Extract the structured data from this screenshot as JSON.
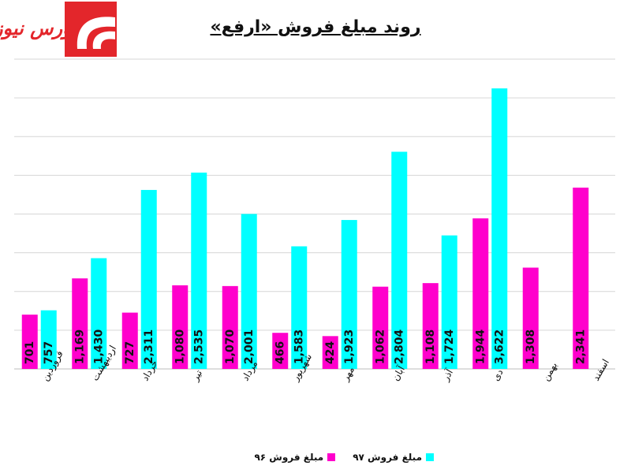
{
  "title": "روند مبلغ فروش «ارفع»",
  "logo_text": "بورس نیوز",
  "colors": {
    "s96": "#ff00cc",
    "s97": "#00ffff",
    "grid": "#d6d6d6",
    "logo": "#e3262b"
  },
  "chart_data": {
    "type": "bar",
    "title": "روند مبلغ فروش «ارفع»",
    "categories": [
      "فروردین",
      "اردیبهشت",
      "خرداد",
      "تیر",
      "مرداد",
      "شهریور",
      "مهر",
      "آبان",
      "آذر",
      "دی",
      "بهمن",
      "اسفند"
    ],
    "series": [
      {
        "name": "مبلغ فروش ۹۶",
        "values": [
          701,
          1169,
          727,
          1080,
          1070,
          466,
          424,
          1062,
          1108,
          1944,
          1308,
          2341
        ],
        "labels": [
          "701",
          "1,169",
          "727",
          "1,080",
          "1,070",
          "466",
          "424",
          "1,062",
          "1,108",
          "1,944",
          "1,308",
          "2,341"
        ]
      },
      {
        "name": "مبلغ فروش ۹۷",
        "values": [
          757,
          1430,
          2311,
          2535,
          2001,
          1583,
          1923,
          2804,
          1724,
          3622,
          null,
          null
        ],
        "labels": [
          "757",
          "1,430",
          "2,311",
          "2,535",
          "2,001",
          "1,583",
          "1,923",
          "2,804",
          "1,724",
          "3,622",
          "",
          ""
        ]
      }
    ],
    "ylim": [
      0,
      4000
    ],
    "gridlines": [
      0,
      500,
      1000,
      1500,
      2000,
      2500,
      3000,
      3500,
      4000
    ],
    "grid": true,
    "legend_position": "bottom"
  }
}
